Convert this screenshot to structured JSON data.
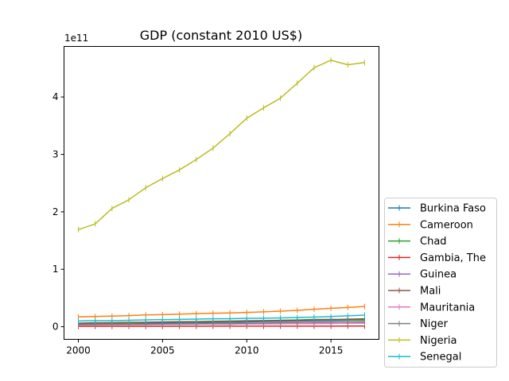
{
  "chart_data": {
    "type": "line",
    "title": "GDP (constant 2010 US$)",
    "xlabel": "",
    "ylabel": "",
    "y_multiplier_label": "1e11",
    "x": [
      2000,
      2001,
      2002,
      2003,
      2004,
      2005,
      2006,
      2007,
      2008,
      2009,
      2010,
      2011,
      2012,
      2013,
      2014,
      2015,
      2016,
      2017
    ],
    "xlim": [
      1999.15,
      2017.85
    ],
    "ylim": [
      -0.22,
      4.88
    ],
    "x_ticks": [
      2000,
      2005,
      2010,
      2015
    ],
    "y_ticks": [
      0,
      1,
      2,
      3,
      4
    ],
    "grid": false,
    "legend_position": "right, outside the plot",
    "series": [
      {
        "name": "Burkina Faso",
        "color": "#1f77b4",
        "values": [
          0.048,
          0.051,
          0.053,
          0.057,
          0.06,
          0.064,
          0.068,
          0.071,
          0.075,
          0.077,
          0.084,
          0.089,
          0.095,
          0.1,
          0.104,
          0.108,
          0.114,
          0.121
        ]
      },
      {
        "name": "Cameroon",
        "color": "#ff7f0e",
        "values": [
          0.17,
          0.178,
          0.185,
          0.193,
          0.205,
          0.21,
          0.218,
          0.228,
          0.235,
          0.24,
          0.248,
          0.258,
          0.27,
          0.285,
          0.303,
          0.32,
          0.335,
          0.352
        ]
      },
      {
        "name": "Chad",
        "color": "#2ca02c",
        "values": [
          0.04,
          0.044,
          0.048,
          0.055,
          0.075,
          0.082,
          0.083,
          0.084,
          0.087,
          0.09,
          0.102,
          0.102,
          0.111,
          0.117,
          0.125,
          0.127,
          0.119,
          0.115
        ]
      },
      {
        "name": "Gambia, The",
        "color": "#d62728",
        "values": [
          0.006,
          0.006,
          0.006,
          0.007,
          0.007,
          0.007,
          0.008,
          0.008,
          0.009,
          0.009,
          0.01,
          0.009,
          0.01,
          0.01,
          0.01,
          0.01,
          0.011,
          0.011
        ]
      },
      {
        "name": "Guinea",
        "color": "#9467bd",
        "values": [
          0.037,
          0.038,
          0.04,
          0.04,
          0.041,
          0.042,
          0.043,
          0.043,
          0.045,
          0.045,
          0.047,
          0.049,
          0.051,
          0.053,
          0.055,
          0.057,
          0.063,
          0.069
        ]
      },
      {
        "name": "Mali",
        "color": "#8c564b",
        "values": [
          0.061,
          0.068,
          0.071,
          0.076,
          0.078,
          0.083,
          0.087,
          0.09,
          0.094,
          0.098,
          0.103,
          0.106,
          0.106,
          0.109,
          0.117,
          0.124,
          0.131,
          0.138
        ]
      },
      {
        "name": "Mauritania",
        "color": "#e377c2",
        "values": [
          0.031,
          0.032,
          0.032,
          0.034,
          0.036,
          0.038,
          0.045,
          0.046,
          0.046,
          0.045,
          0.047,
          0.049,
          0.052,
          0.055,
          0.058,
          0.058,
          0.059,
          0.061
        ]
      },
      {
        "name": "Niger",
        "color": "#7f7f7f",
        "values": [
          0.037,
          0.04,
          0.042,
          0.043,
          0.043,
          0.047,
          0.05,
          0.051,
          0.056,
          0.056,
          0.061,
          0.063,
          0.07,
          0.074,
          0.079,
          0.082,
          0.086,
          0.09
        ]
      },
      {
        "name": "Nigeria",
        "color": "#bcbd22",
        "values": [
          1.69,
          1.79,
          2.06,
          2.21,
          2.42,
          2.58,
          2.73,
          2.91,
          3.11,
          3.36,
          3.63,
          3.81,
          3.98,
          4.24,
          4.51,
          4.64,
          4.56,
          4.6
        ]
      },
      {
        "name": "Senegal",
        "color": "#17becf",
        "values": [
          0.099,
          0.104,
          0.104,
          0.112,
          0.118,
          0.124,
          0.127,
          0.133,
          0.137,
          0.14,
          0.146,
          0.148,
          0.154,
          0.16,
          0.167,
          0.177,
          0.189,
          0.202
        ]
      }
    ]
  }
}
